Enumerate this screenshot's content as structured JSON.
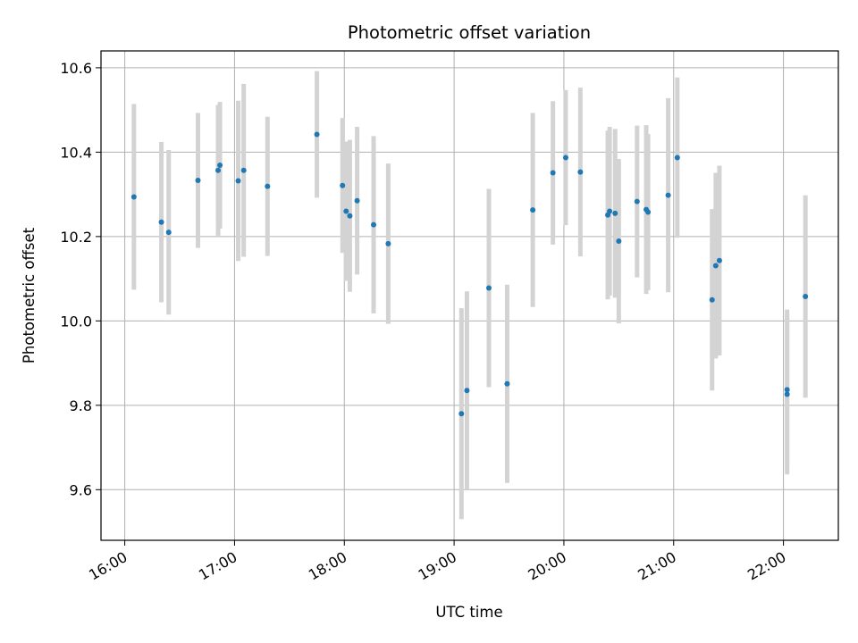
{
  "chart_data": {
    "type": "scatter",
    "title": "Photometric offset variation",
    "xlabel": "UTC time",
    "ylabel": "Photometric offset",
    "x_ticks": [
      "16:00",
      "17:00",
      "18:00",
      "19:00",
      "20:00",
      "21:00",
      "22:00"
    ],
    "y_ticks": [
      "9.6",
      "9.8",
      "10.0",
      "10.2",
      "10.4",
      "10.6"
    ],
    "y_tick_values": [
      9.6,
      9.8,
      10.0,
      10.2,
      10.4,
      10.6
    ],
    "xlim": [
      "15:47",
      "22:30"
    ],
    "ylim": [
      9.48,
      10.64
    ],
    "grid": true,
    "point_color": "#1f77b4",
    "errorbar_color": "#d3d3d3",
    "series": [
      {
        "points": [
          {
            "t": "16:05",
            "y": 10.294,
            "err": 0.22
          },
          {
            "t": "16:20",
            "y": 10.234,
            "err": 0.19
          },
          {
            "t": "16:24",
            "y": 10.21,
            "err": 0.195
          },
          {
            "t": "16:40",
            "y": 10.333,
            "err": 0.16
          },
          {
            "t": "16:51",
            "y": 10.357,
            "err": 0.155
          },
          {
            "t": "16:52",
            "y": 10.369,
            "err": 0.15
          },
          {
            "t": "17:02",
            "y": 10.332,
            "err": 0.19
          },
          {
            "t": "17:05",
            "y": 10.357,
            "err": 0.205
          },
          {
            "t": "17:18",
            "y": 10.319,
            "err": 0.165
          },
          {
            "t": "17:45",
            "y": 10.442,
            "err": 0.15
          },
          {
            "t": "17:59",
            "y": 10.321,
            "err": 0.16
          },
          {
            "t": "18:01",
            "y": 10.26,
            "err": 0.165
          },
          {
            "t": "18:03",
            "y": 10.249,
            "err": 0.18
          },
          {
            "t": "18:07",
            "y": 10.285,
            "err": 0.175
          },
          {
            "t": "18:16",
            "y": 10.228,
            "err": 0.21
          },
          {
            "t": "18:24",
            "y": 10.183,
            "err": 0.19
          },
          {
            "t": "19:04",
            "y": 9.78,
            "err": 0.25
          },
          {
            "t": "19:07",
            "y": 9.835,
            "err": 0.235
          },
          {
            "t": "19:19",
            "y": 10.078,
            "err": 0.235
          },
          {
            "t": "19:29",
            "y": 9.851,
            "err": 0.235
          },
          {
            "t": "19:43",
            "y": 10.263,
            "err": 0.23
          },
          {
            "t": "19:54",
            "y": 10.351,
            "err": 0.17
          },
          {
            "t": "20:01",
            "y": 10.387,
            "err": 0.16
          },
          {
            "t": "20:09",
            "y": 10.353,
            "err": 0.2
          },
          {
            "t": "20:24",
            "y": 10.251,
            "err": 0.2
          },
          {
            "t": "20:25",
            "y": 10.26,
            "err": 0.2
          },
          {
            "t": "20:28",
            "y": 10.255,
            "err": 0.2
          },
          {
            "t": "20:30",
            "y": 10.189,
            "err": 0.195
          },
          {
            "t": "20:40",
            "y": 10.283,
            "err": 0.18
          },
          {
            "t": "20:45",
            "y": 10.264,
            "err": 0.2
          },
          {
            "t": "20:46",
            "y": 10.258,
            "err": 0.185
          },
          {
            "t": "20:57",
            "y": 10.298,
            "err": 0.23
          },
          {
            "t": "21:02",
            "y": 10.387,
            "err": 0.19
          },
          {
            "t": "21:21",
            "y": 10.05,
            "err": 0.215
          },
          {
            "t": "21:23",
            "y": 10.131,
            "err": 0.22
          },
          {
            "t": "21:25",
            "y": 10.143,
            "err": 0.225
          },
          {
            "t": "22:02",
            "y": 9.826,
            "err": 0.19
          },
          {
            "t": "22:02",
            "y": 9.837,
            "err": 0.19
          },
          {
            "t": "22:12",
            "y": 10.058,
            "err": 0.24
          }
        ]
      }
    ]
  }
}
